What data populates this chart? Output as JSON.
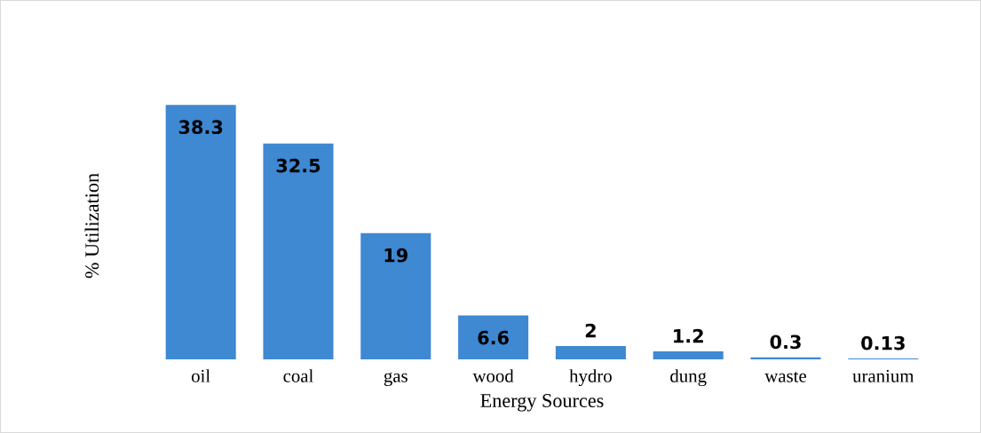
{
  "chart_data": {
    "type": "bar",
    "xlabel": "Energy Sources",
    "ylabel": "% Utilization",
    "categories": [
      "oil",
      "coal",
      "gas",
      "wood",
      "hydro",
      "dung",
      "waste",
      "uranium"
    ],
    "values": [
      38.3,
      32.5,
      19,
      6.6,
      2,
      1.2,
      0.3,
      0.13
    ],
    "color": "#3f88d2",
    "data_labels": true
  }
}
